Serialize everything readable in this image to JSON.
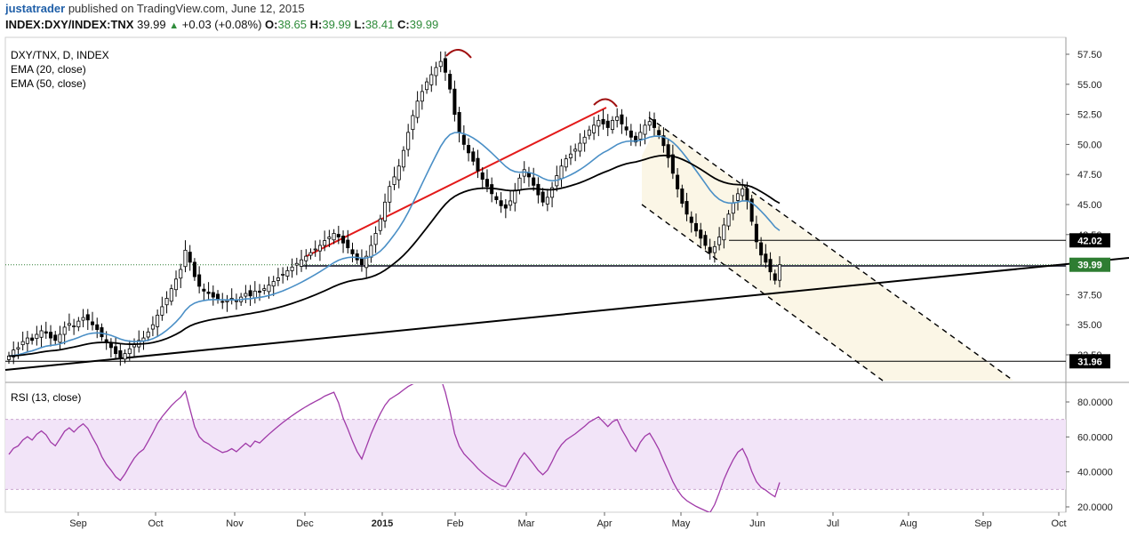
{
  "header": {
    "user": "justatrader",
    "published": "published on TradingView.com, June 12, 2015",
    "symbol": "INDEX:DXY/INDEX:TNX",
    "last": "39.99",
    "change": "+0.03 (+0.08%)",
    "open_label": "O:",
    "open": "38.65",
    "high_label": "H:",
    "high": "39.99",
    "low_label": "L:",
    "low": "38.41",
    "close_label": "C:",
    "close": "39.99"
  },
  "legend": {
    "line1": "DXY/TNX, D, INDEX",
    "line2": "EMA (20, close)",
    "line3": "EMA (50, close)",
    "rsi": "RSI (13, close)"
  },
  "colors": {
    "up": "#ffffff",
    "down": "#000000",
    "ema20": "#4a8fc6",
    "ema50": "#000000",
    "trend_red": "#e31a1a",
    "rsi": "#a03aa8",
    "rsi_band": "#f2e4f8",
    "channel_fill": "#fbf6e6",
    "price_tag": "#000000",
    "price_tag_text": "#ffffff"
  },
  "chart_data": [
    {
      "type": "candlestick",
      "title": "DXY/TNX, D, INDEX",
      "x_tick_labels": [
        "Sep",
        "Oct",
        "Nov",
        "Dec",
        "2015",
        "Feb",
        "Mar",
        "Apr",
        "May",
        "Jun",
        "Jul",
        "Aug",
        "Sep",
        "Oct"
      ],
      "y_tick_labels": [
        "57.50",
        "55.00",
        "52.50",
        "50.00",
        "47.50",
        "45.00",
        "42.50",
        "37.50",
        "35.00",
        "32.50"
      ],
      "ylim": [
        30,
        59
      ],
      "price_tags": [
        "42.02",
        "39.99",
        "31.96"
      ],
      "series": [
        {
          "name": "EMA (20, close)"
        },
        {
          "name": "EMA (50, close)"
        }
      ],
      "closes": [
        32.4,
        32.9,
        33.1,
        33.6,
        33.9,
        33.7,
        34.2,
        34.5,
        34.3,
        33.9,
        33.7,
        34.2,
        34.8,
        35.1,
        34.9,
        35.3,
        35.6,
        35.4,
        35.0,
        34.6,
        34.0,
        33.5,
        33.1,
        32.6,
        32.3,
        32.6,
        33.0,
        33.4,
        33.7,
        33.9,
        34.4,
        35.0,
        35.8,
        36.5,
        37.2,
        38.0,
        38.8,
        39.6,
        41.2,
        40.2,
        39.0,
        38.2,
        37.8,
        37.6,
        37.3,
        37.1,
        36.9,
        37.0,
        37.2,
        37.0,
        37.3,
        37.6,
        37.4,
        37.8,
        37.7,
        38.0,
        38.3,
        38.6,
        38.9,
        39.2,
        39.5,
        39.8,
        40.1,
        40.4,
        40.7,
        41.0,
        41.3,
        41.6,
        42.0,
        42.3,
        42.6,
        42.3,
        41.8,
        41.4,
        40.9,
        40.4,
        40.0,
        40.7,
        41.6,
        42.6,
        43.8,
        45.2,
        46.5,
        47.3,
        48.2,
        49.5,
        51.0,
        52.4,
        53.6,
        54.4,
        55.2,
        55.8,
        56.4,
        56.9,
        56.0,
        54.6,
        52.5,
        51.0,
        50.0,
        49.3,
        48.6,
        47.8,
        47.1,
        46.5,
        45.9,
        45.4,
        44.9,
        44.7,
        45.3,
        46.2,
        47.2,
        47.9,
        47.3,
        46.6,
        45.8,
        45.2,
        45.6,
        46.4,
        47.4,
        48.2,
        48.8,
        49.2,
        49.6,
        50.1,
        50.6,
        51.2,
        51.6,
        52.0,
        51.7,
        51.4,
        52.0,
        52.3,
        51.7,
        51.2,
        50.6,
        50.2,
        51.0,
        51.6,
        51.9,
        51.4,
        50.8,
        49.9,
        48.9,
        47.6,
        46.3,
        45.1,
        44.2,
        43.5,
        42.8,
        42.2,
        41.6,
        41.0,
        41.5,
        42.3,
        43.3,
        44.2,
        45.1,
        45.9,
        46.3,
        45.3,
        43.6,
        41.9,
        40.8,
        40.2,
        39.4,
        38.7,
        39.99
      ],
      "rsi_series": {
        "name": "RSI (13, close)",
        "ylim": [
          20,
          85
        ],
        "band": [
          30,
          70
        ],
        "y_tick_labels": [
          "80.0000",
          "60.0000",
          "40.0000",
          "20.0000"
        ]
      }
    }
  ]
}
